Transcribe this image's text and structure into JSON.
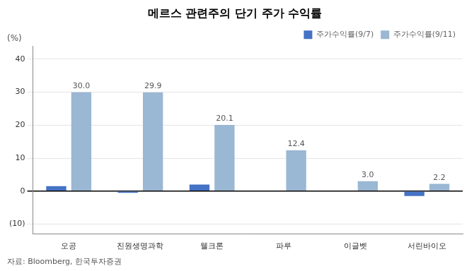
{
  "chart_data": {
    "type": "bar",
    "title": "메르스 관련주의 단기 주가 수익률",
    "ylabel": "(%)",
    "annotations": [
      "자료: Bloomberg, 한국투자증권"
    ],
    "categories": [
      "오공",
      "진원생명과학",
      "웰크론",
      "파루",
      "이글벳",
      "서린바이오"
    ],
    "series": [
      {
        "name": "주가수익률(9/7)",
        "color": "#4472c4",
        "values": [
          1.5,
          -0.5,
          2.0,
          0.0,
          0.0,
          -1.5
        ]
      },
      {
        "name": "주가수익률(9/11)",
        "color": "#9ab7d3",
        "values": [
          30.0,
          29.9,
          20.1,
          12.4,
          3.0,
          2.2
        ],
        "data_labels": true,
        "value_labels": [
          "30.0",
          "29.9",
          "20.1",
          "12.4",
          "3.0",
          "2.2"
        ]
      }
    ],
    "ylim": [
      -13,
      44
    ],
    "yticks": [
      {
        "value": -10,
        "label": "(10)"
      },
      0,
      10,
      20,
      30,
      40
    ],
    "grid": true,
    "legend": "upper right"
  }
}
